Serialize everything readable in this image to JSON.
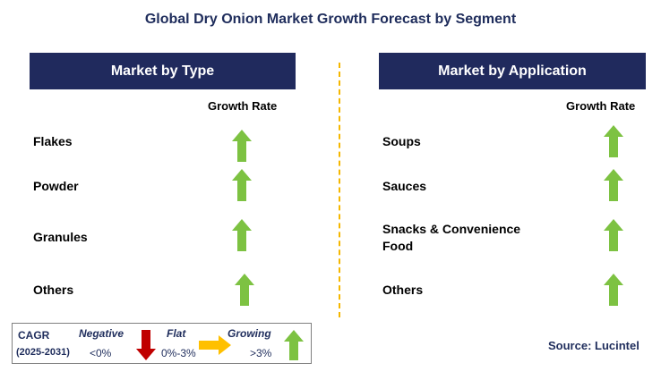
{
  "title": "Global Dry Onion Market Growth Forecast by Segment",
  "left_panel": {
    "header": "Market by Type",
    "growth_rate_label": "Growth Rate",
    "rows": [
      {
        "label": "Flakes",
        "trend": "growing"
      },
      {
        "label": "Powder",
        "trend": "growing"
      },
      {
        "label": "Granules",
        "trend": "growing"
      },
      {
        "label": "Others",
        "trend": "growing"
      }
    ]
  },
  "right_panel": {
    "header": "Market by Application",
    "growth_rate_label": "Growth Rate",
    "rows": [
      {
        "label": "Soups",
        "trend": "growing"
      },
      {
        "label": "Sauces",
        "trend": "growing"
      },
      {
        "label_line1": "Snacks & Convenience",
        "label_line2": "Food",
        "trend": "growing"
      },
      {
        "label": "Others",
        "trend": "growing"
      }
    ]
  },
  "legend": {
    "cagr_label": "CAGR",
    "period": "(2025-2031)",
    "negative_label": "Negative",
    "negative_range": "<0%",
    "flat_label": "Flat",
    "flat_range": "0%-3%",
    "growing_label": "Growing",
    "growing_range": ">3%"
  },
  "source": "Source: Lucintel",
  "colors": {
    "header_bg": "#202a5d",
    "title_text": "#1f2d5c",
    "growing_arrow": "#7dc242",
    "negative_arrow": "#c00000",
    "flat_arrow": "#ffc000",
    "divider": "#f5b700"
  }
}
